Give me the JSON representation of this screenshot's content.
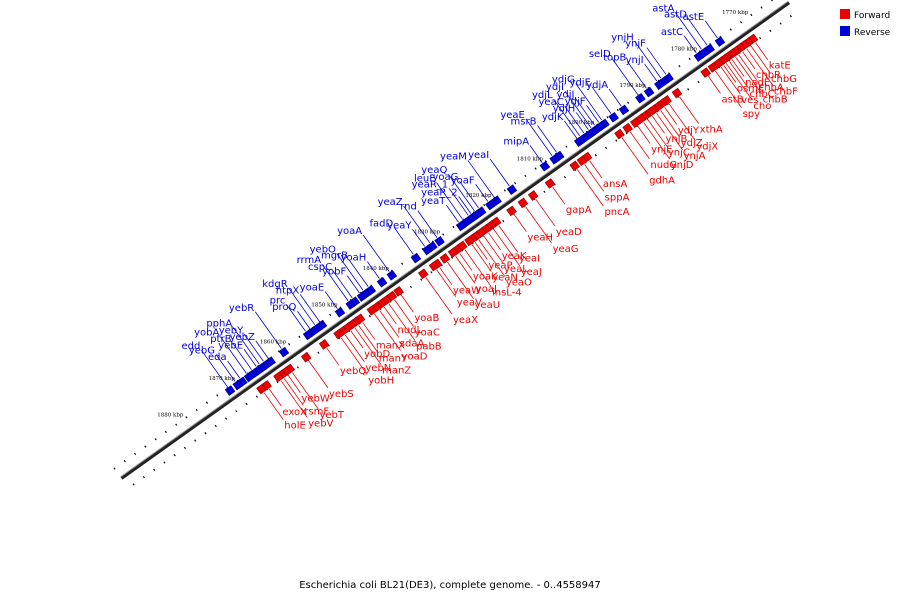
{
  "legend": {
    "forward_label": "Forward",
    "reverse_label": "Reverse",
    "forward_color": "#ee0000",
    "reverse_color": "#0000dd"
  },
  "caption": "Escherichia coli BL21(DE3), complete genome. - 0..4558947",
  "ticks": [
    {
      "label": "1770 kbp",
      "kbp": 1770
    },
    {
      "label": "1780 kbp",
      "kbp": 1780
    },
    {
      "label": "1790 kbp",
      "kbp": 1790
    },
    {
      "label": "1800 kbp",
      "kbp": 1800
    },
    {
      "label": "1810 kbp",
      "kbp": 1810
    },
    {
      "label": "1820 kbp",
      "kbp": 1820
    },
    {
      "label": "1830 kbp",
      "kbp": 1830
    },
    {
      "label": "1840 kbp",
      "kbp": 1840
    },
    {
      "label": "1850 kbp",
      "kbp": 1850
    },
    {
      "label": "1860 kbp",
      "kbp": 1860
    },
    {
      "label": "1870 kbp",
      "kbp": 1870
    },
    {
      "label": "1880 kbp",
      "kbp": 1880
    }
  ],
  "reverse_genes": [
    {
      "name": "astE",
      "kbp": 1774.5
    },
    {
      "name": "astD",
      "kbp": 1776.5
    },
    {
      "name": "astA",
      "kbp": 1777.6
    },
    {
      "name": "astC",
      "kbp": 1778.6
    },
    {
      "name": "ynjF",
      "kbp": 1784.5
    },
    {
      "name": "ynjH",
      "kbp": 1785.5
    },
    {
      "name": "ynjI",
      "kbp": 1786.3
    },
    {
      "name": "topB",
      "kbp": 1788.3
    },
    {
      "name": "selD",
      "kbp": 1790.0
    },
    {
      "name": "ydjA",
      "kbp": 1793.2
    },
    {
      "name": "ydjE",
      "kbp": 1795.2
    },
    {
      "name": "ydjG",
      "kbp": 1797.0
    },
    {
      "name": "ydjF",
      "kbp": 1797.6
    },
    {
      "name": "ydjJ",
      "kbp": 1798.4
    },
    {
      "name": "ydjI",
      "kbp": 1799.1
    },
    {
      "name": "ydjH",
      "kbp": 1799.6
    },
    {
      "name": "yeaC",
      "kbp": 1800.5
    },
    {
      "name": "ydjL",
      "kbp": 1801.3
    },
    {
      "name": "ydjK",
      "kbp": 1801.9
    },
    {
      "name": "msrB",
      "kbp": 1805.8
    },
    {
      "name": "yeaE",
      "kbp": 1806.7
    },
    {
      "name": "mipA",
      "kbp": 1808.6
    },
    {
      "name": "yeaI",
      "kbp": 1815.0
    },
    {
      "name": "yeaM",
      "kbp": 1818.0
    },
    {
      "name": "yoaF",
      "kbp": 1819.2
    },
    {
      "name": "yoaG",
      "kbp": 1821.0
    },
    {
      "name": "yeaQ",
      "kbp": 1821.8
    },
    {
      "name": "yeaR_2",
      "kbp": 1822.5
    },
    {
      "name": "yeaR_1",
      "kbp": 1823.0
    },
    {
      "name": "leuE",
      "kbp": 1824.1
    },
    {
      "name": "yeaT",
      "kbp": 1824.9
    },
    {
      "name": "rnd",
      "kbp": 1829.1
    },
    {
      "name": "yeaZ",
      "kbp": 1830.5
    },
    {
      "name": "yeaY",
      "kbp": 1831.5
    },
    {
      "name": "fadD",
      "kbp": 1833.7
    },
    {
      "name": "yoaA",
      "kbp": 1838.4
    },
    {
      "name": "yoaH",
      "kbp": 1840.3
    },
    {
      "name": "mgrB",
      "kbp": 1842.5
    },
    {
      "name": "yebO",
      "kbp": 1843.5
    },
    {
      "name": "yobF",
      "kbp": 1844.2
    },
    {
      "name": "cspC",
      "kbp": 1845.6
    },
    {
      "name": "rrmA",
      "kbp": 1846.4
    },
    {
      "name": "yoaE",
      "kbp": 1848.5
    },
    {
      "name": "htpX",
      "kbp": 1852.0
    },
    {
      "name": "kdgR",
      "kbp": 1852.9
    },
    {
      "name": "proQ",
      "kbp": 1853.9
    },
    {
      "name": "prc",
      "kbp": 1854.7
    },
    {
      "name": "yebR",
      "kbp": 1859.4
    },
    {
      "name": "yebZ",
      "kbp": 1862.0
    },
    {
      "name": "yebY",
      "kbp": 1862.9
    },
    {
      "name": "pphA",
      "kbp": 1863.7
    },
    {
      "name": "yebE",
      "kbp": 1864.3
    },
    {
      "name": "ptrB",
      "kbp": 1865.2
    },
    {
      "name": "yobA",
      "kbp": 1866.2
    },
    {
      "name": "eda",
      "kbp": 1867.5
    },
    {
      "name": "yebG",
      "kbp": 1868.4
    },
    {
      "name": "edd",
      "kbp": 1869.9
    }
  ],
  "forward_genes": [
    {
      "name": "katE",
      "kbp": 1770.0
    },
    {
      "name": "chbG",
      "kbp": 1770.9
    },
    {
      "name": "chbF",
      "kbp": 1771.7
    },
    {
      "name": "chbR",
      "kbp": 1772.5
    },
    {
      "name": "chbA",
      "kbp": 1773.3
    },
    {
      "name": "chbB",
      "kbp": 1773.9
    },
    {
      "name": "nadE",
      "kbp": 1774.6
    },
    {
      "name": "chbC",
      "kbp": 1775.1
    },
    {
      "name": "cho",
      "kbp": 1775.7
    },
    {
      "name": "osmE",
      "kbp": 1776.2
    },
    {
      "name": "ves",
      "kbp": 1776.7
    },
    {
      "name": "spy",
      "kbp": 1777.8
    },
    {
      "name": "astB",
      "kbp": 1779.2
    },
    {
      "name": "xthA",
      "kbp": 1784.8
    },
    {
      "name": "ydjX",
      "kbp": 1786.8
    },
    {
      "name": "ydjY",
      "kbp": 1787.7
    },
    {
      "name": "ydjZ",
      "kbp": 1788.5
    },
    {
      "name": "ynjA",
      "kbp": 1789.3
    },
    {
      "name": "ynjB",
      "kbp": 1790.1
    },
    {
      "name": "ynjC",
      "kbp": 1791.0
    },
    {
      "name": "ynjD",
      "kbp": 1791.8
    },
    {
      "name": "ynjE",
      "kbp": 1792.9
    },
    {
      "name": "nudG",
      "kbp": 1794.4
    },
    {
      "name": "gdhA",
      "kbp": 1796.0
    },
    {
      "name": "ansA",
      "kbp": 1802.3
    },
    {
      "name": "sppA",
      "kbp": 1803.3
    },
    {
      "name": "pncA",
      "kbp": 1804.7
    },
    {
      "name": "gapA",
      "kbp": 1809.5
    },
    {
      "name": "yeaD",
      "kbp": 1812.8
    },
    {
      "name": "yeaG",
      "kbp": 1814.8
    },
    {
      "name": "yeaH",
      "kbp": 1817.0
    },
    {
      "name": "yeaI",
      "kbp": 1820.0
    },
    {
      "name": "yeaJ",
      "kbp": 1821.0
    },
    {
      "name": "yeaK",
      "kbp": 1822.0
    },
    {
      "name": "yeaL",
      "kbp": 1822.9
    },
    {
      "name": "yeaO",
      "kbp": 1823.9
    },
    {
      "name": "yeaP",
      "kbp": 1824.6
    },
    {
      "name": "yeaN",
      "kbp": 1825.2
    },
    {
      "name": "insL-4",
      "kbp": 1826.6
    },
    {
      "name": "yoaK",
      "kbp": 1827.6
    },
    {
      "name": "yoaJ",
      "kbp": 1828.4
    },
    {
      "name": "yeaU",
      "kbp": 1830.0
    },
    {
      "name": "yeaW",
      "kbp": 1831.5
    },
    {
      "name": "yeaV",
      "kbp": 1832.1
    },
    {
      "name": "yeaX",
      "kbp": 1834.2
    },
    {
      "name": "yoaB",
      "kbp": 1839.0
    },
    {
      "name": "yoaC",
      "kbp": 1840.3
    },
    {
      "name": "pabB",
      "kbp": 1841.4
    },
    {
      "name": "nudL",
      "kbp": 1842.3
    },
    {
      "name": "sdaA",
      "kbp": 1843.2
    },
    {
      "name": "yoaD",
      "kbp": 1844.2
    },
    {
      "name": "manX",
      "kbp": 1846.5
    },
    {
      "name": "manY",
      "kbp": 1847.3
    },
    {
      "name": "manZ",
      "kbp": 1848.0
    },
    {
      "name": "yobD",
      "kbp": 1848.8
    },
    {
      "name": "yebN",
      "kbp": 1849.9
    },
    {
      "name": "yobH",
      "kbp": 1850.7
    },
    {
      "name": "yebQ",
      "kbp": 1853.5
    },
    {
      "name": "yebS",
      "kbp": 1857.0
    },
    {
      "name": "yebT",
      "kbp": 1860.2
    },
    {
      "name": "yebW",
      "kbp": 1861.0
    },
    {
      "name": "rsmF",
      "kbp": 1861.8
    },
    {
      "name": "yebV",
      "kbp": 1862.4
    },
    {
      "name": "exoX",
      "kbp": 1864.7
    },
    {
      "name": "holE",
      "kbp": 1865.7
    }
  ]
}
